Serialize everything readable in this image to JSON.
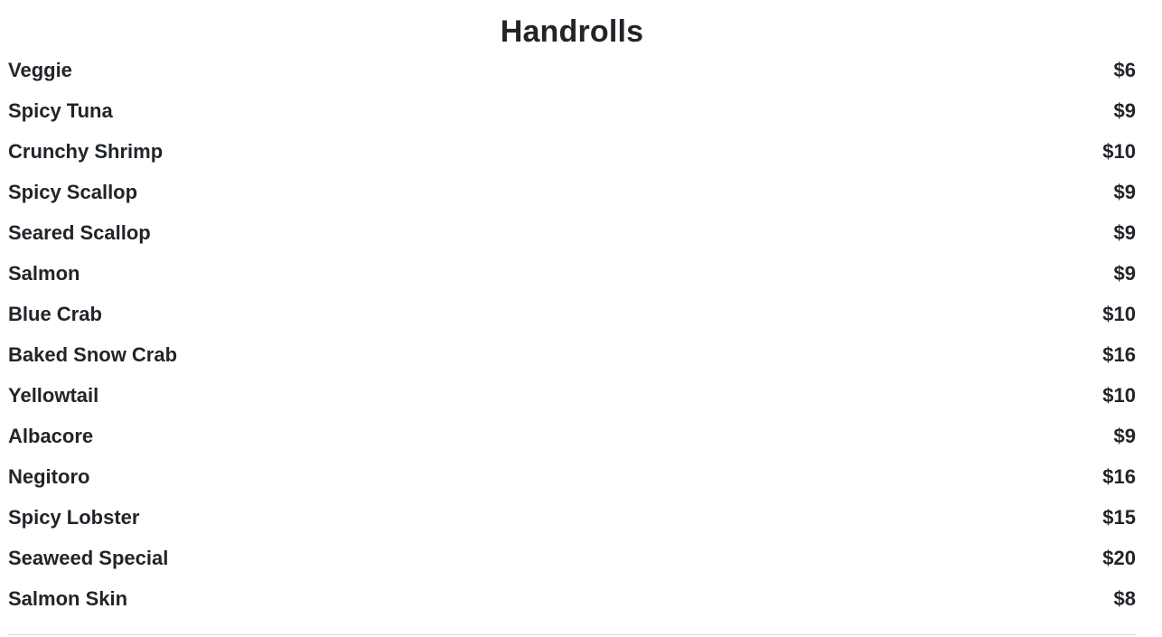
{
  "section": {
    "title": "Handrolls",
    "items": [
      {
        "name": "Veggie",
        "price": "$6"
      },
      {
        "name": "Spicy Tuna",
        "price": "$9"
      },
      {
        "name": "Crunchy Shrimp",
        "price": "$10"
      },
      {
        "name": "Spicy Scallop",
        "price": "$9"
      },
      {
        "name": "Seared Scallop",
        "price": "$9"
      },
      {
        "name": "Salmon",
        "price": "$9"
      },
      {
        "name": "Blue Crab",
        "price": "$10"
      },
      {
        "name": "Baked Snow Crab",
        "price": "$16"
      },
      {
        "name": "Yellowtail",
        "price": "$10"
      },
      {
        "name": "Albacore",
        "price": "$9"
      },
      {
        "name": "Negitoro",
        "price": "$16"
      },
      {
        "name": "Spicy Lobster",
        "price": "$15"
      },
      {
        "name": "Seaweed Special",
        "price": "$20"
      },
      {
        "name": "Salmon Skin",
        "price": "$8"
      }
    ]
  }
}
